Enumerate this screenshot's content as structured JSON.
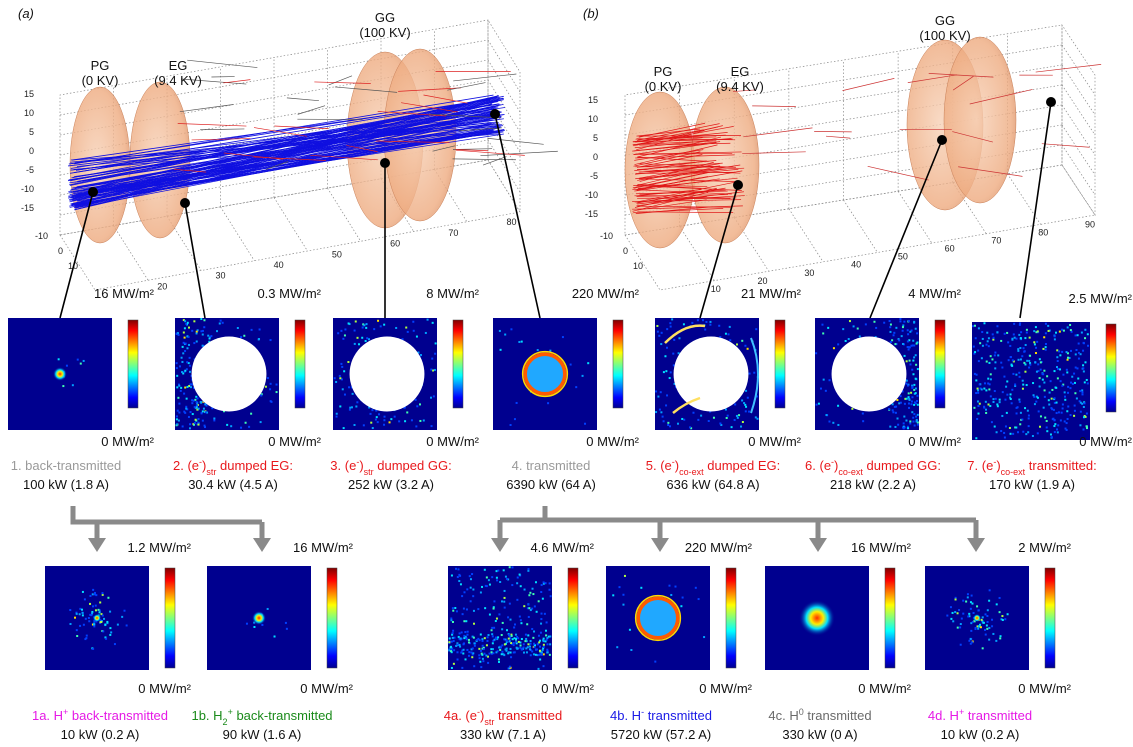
{
  "panel_labels": [
    "(a)",
    "(b)"
  ],
  "plots": [
    {
      "electrodes": [
        {
          "name": "PG",
          "voltage": "(0 KV)"
        },
        {
          "name": "EG",
          "voltage": "(9.4 KV)"
        },
        {
          "name": "GG",
          "voltage": "(100 KV)"
        }
      ],
      "yticks": [
        "15",
        "10",
        "5",
        "0",
        "-5",
        "-10",
        "-15"
      ],
      "xticks": [
        "-10",
        "0",
        "10"
      ],
      "zticks": [
        "20",
        "30",
        "40",
        "50",
        "60",
        "70",
        "80"
      ]
    },
    {
      "electrodes": [
        {
          "name": "PG",
          "voltage": "(0 KV)"
        },
        {
          "name": "EG",
          "voltage": "(9.4 KV)"
        },
        {
          "name": "GG",
          "voltage": "(100 KV)"
        }
      ],
      "yticks": [
        "15",
        "10",
        "5",
        "0",
        "-5",
        "-10",
        "-15"
      ],
      "xticks": [
        "-10",
        "0",
        "10"
      ],
      "zticks": [
        "10",
        "20",
        "30",
        "40",
        "50",
        "60",
        "70",
        "80",
        "90"
      ]
    }
  ],
  "maps_top": [
    {
      "max": "16 MW/m²",
      "min": "0 MW/m²",
      "color": "#9a9a9a",
      "caption": [
        {
          "text": "1. back-transmitted",
          "style": "normal"
        }
      ],
      "power": "100 kW (1.8 A)"
    },
    {
      "max": "0.3 MW/m²",
      "min": "0 MW/m²",
      "color": "#e8191c",
      "caption": [
        {
          "text": "2. (e",
          "style": "normal"
        },
        {
          "text": "-",
          "style": "sup"
        },
        {
          "text": ")",
          "style": "normal"
        },
        {
          "text": "str",
          "style": "sub"
        },
        {
          "text": " dumped EG:",
          "style": "normal"
        }
      ],
      "power": "30.4 kW (4.5 A)"
    },
    {
      "max": "8 MW/m²",
      "min": "0 MW/m²",
      "color": "#e8191c",
      "caption": [
        {
          "text": "3. (e",
          "style": "normal"
        },
        {
          "text": "-",
          "style": "sup"
        },
        {
          "text": ")",
          "style": "normal"
        },
        {
          "text": "str",
          "style": "sub"
        },
        {
          "text": " dumped GG:",
          "style": "normal"
        }
      ],
      "power": "252 kW (3.2 A)"
    },
    {
      "max": "220 MW/m²",
      "min": "0 MW/m²",
      "color": "#9a9a9a",
      "caption": [
        {
          "text": "4. transmitted",
          "style": "normal"
        }
      ],
      "power": "6390 kW (64 A)"
    },
    {
      "max": "21 MW/m²",
      "min": "0 MW/m²",
      "color": "#e8191c",
      "caption": [
        {
          "text": "5. (e",
          "style": "normal"
        },
        {
          "text": "-",
          "style": "sup"
        },
        {
          "text": ")",
          "style": "normal"
        },
        {
          "text": "co-ext",
          "style": "sub"
        },
        {
          "text": " dumped EG:",
          "style": "normal"
        }
      ],
      "power": "636 kW (64.8 A)"
    },
    {
      "max": "4 MW/m²",
      "min": "0 MW/m²",
      "color": "#e8191c",
      "caption": [
        {
          "text": "6. (e",
          "style": "normal"
        },
        {
          "text": "-",
          "style": "sup"
        },
        {
          "text": ")",
          "style": "normal"
        },
        {
          "text": "co-ext",
          "style": "sub"
        },
        {
          "text": " dumped GG:",
          "style": "normal"
        }
      ],
      "power": "218 kW (2.2 A)"
    },
    {
      "max": "2.5 MW/m²",
      "min": "0 MW/m²",
      "color": "#e8191c",
      "caption": [
        {
          "text": "7. (e",
          "style": "normal"
        },
        {
          "text": "-",
          "style": "sup"
        },
        {
          "text": ")",
          "style": "normal"
        },
        {
          "text": "co-ext",
          "style": "sub"
        },
        {
          "text": " transmitted:",
          "style": "normal"
        }
      ],
      "power": "170 kW (1.9 A)"
    }
  ],
  "maps_bottom": [
    {
      "max": "1.2 MW/m²",
      "min": "0 MW/m²",
      "color": "#e619e6",
      "caption": [
        {
          "text": "1a. H",
          "style": "normal"
        },
        {
          "text": "+",
          "style": "sup"
        },
        {
          "text": " back-transmitted",
          "style": "normal"
        }
      ],
      "power": "10 kW (0.2 A)"
    },
    {
      "max": "16 MW/m²",
      "min": "0 MW/m²",
      "color": "#1a8a1a",
      "caption": [
        {
          "text": "1b. H",
          "style": "normal"
        },
        {
          "text": "2",
          "style": "sub"
        },
        {
          "text": "+",
          "style": "sup"
        },
        {
          "text": " back-transmitted",
          "style": "normal"
        }
      ],
      "power": "90 kW (1.6 A)"
    },
    {
      "max": "4.6 MW/m²",
      "min": "0 MW/m²",
      "color": "#e8191c",
      "caption": [
        {
          "text": "4a. (e",
          "style": "normal"
        },
        {
          "text": "-",
          "style": "sup"
        },
        {
          "text": ")",
          "style": "normal"
        },
        {
          "text": "str",
          "style": "sub"
        },
        {
          "text": " transmitted",
          "style": "normal"
        }
      ],
      "power": "330 kW (7.1 A)"
    },
    {
      "max": "220 MW/m²",
      "min": "0 MW/m²",
      "color": "#1a1ae6",
      "caption": [
        {
          "text": "4b. H",
          "style": "normal"
        },
        {
          "text": "-",
          "style": "sup"
        },
        {
          "text": " transmitted",
          "style": "normal"
        }
      ],
      "power": "5720 kW (57.2 A)"
    },
    {
      "max": "16 MW/m²",
      "min": "0 MW/m²",
      "color": "#6a6a6a",
      "caption": [
        {
          "text": "4c. H",
          "style": "normal"
        },
        {
          "text": "0",
          "style": "sup"
        },
        {
          "text": " transmitted",
          "style": "normal"
        }
      ],
      "power": "330 kW (0 A)"
    },
    {
      "max": "2 MW/m²",
      "min": "0 MW/m²",
      "color": "#e619e6",
      "caption": [
        {
          "text": "4d. H",
          "style": "normal"
        },
        {
          "text": "+",
          "style": "sup"
        },
        {
          "text": " transmitted",
          "style": "normal"
        }
      ],
      "power": "10 kW (0.2 A)"
    }
  ]
}
